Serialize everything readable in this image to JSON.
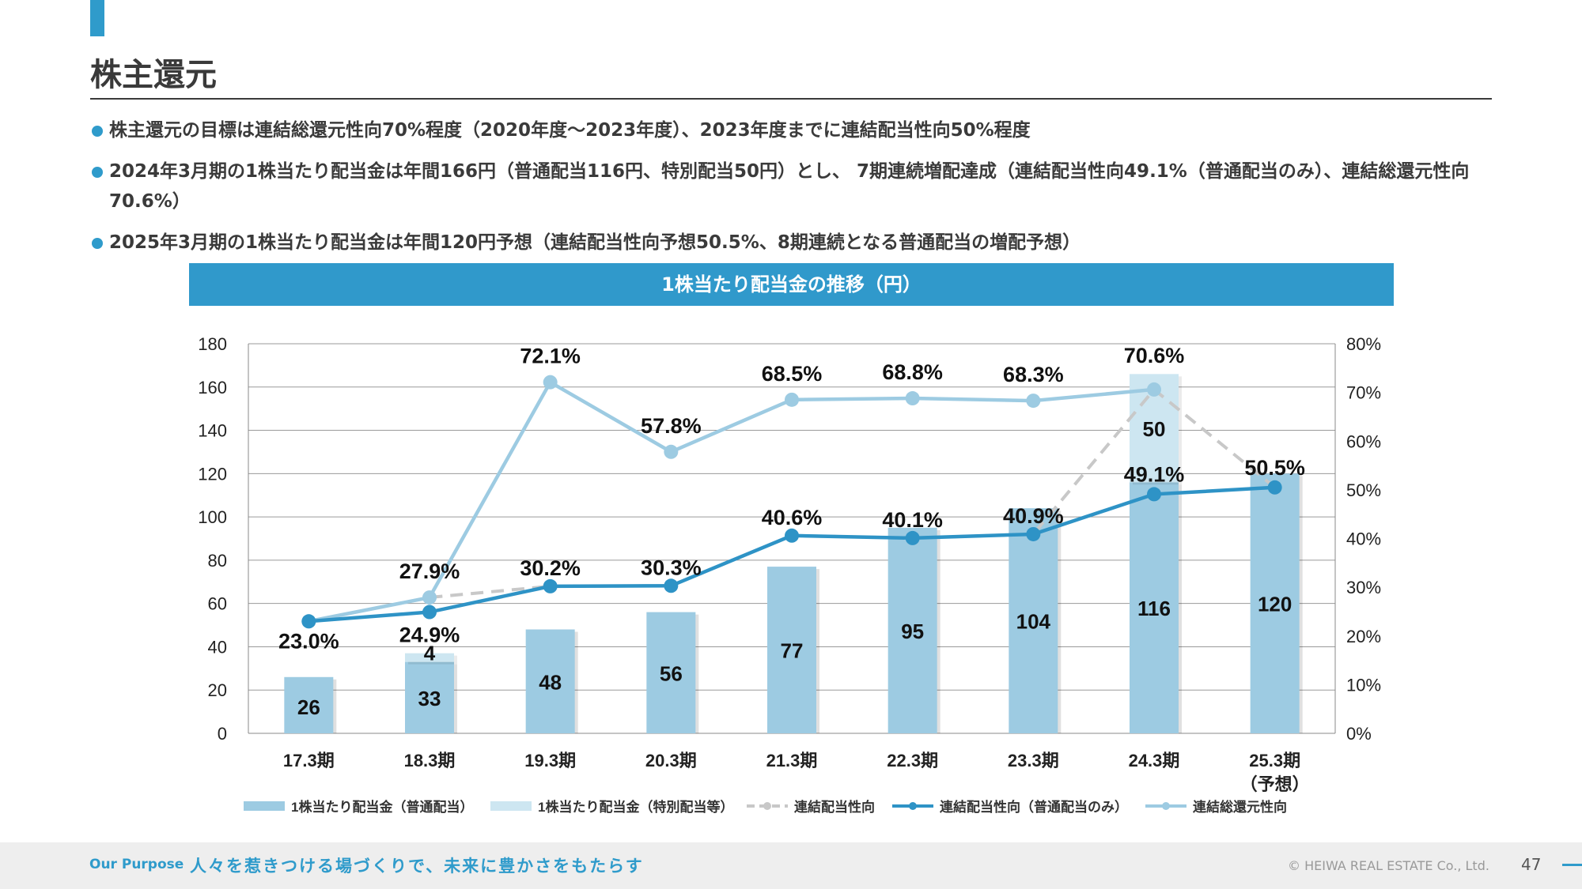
{
  "page": {
    "title": "株主還元",
    "bullets": [
      "株主還元の目標は連結総還元性向70%程度（2020年度〜2023年度）、2023年度までに連結配当性向50%程度",
      "2024年3月期の1株当たり配当金は年間166円（普通配当116円、特別配当50円）とし、 7期連続増配達成（連結配当性向49.1%（普通配当のみ）、連結総還元性向70.6%）",
      "2025年3月期の1株当たり配当金は年間120円予想（連結配当性向予想50.5%、8期連続となる普通配当の増配予想）"
    ],
    "chart_title": "1株当たり配当金の推移（円）"
  },
  "chart_data": {
    "type": "bar",
    "title": "1株当たり配当金の推移（円）",
    "categories": [
      "17.3期",
      "18.3期",
      "19.3期",
      "20.3期",
      "21.3期",
      "22.3期",
      "23.3期",
      "24.3期",
      "25.3期"
    ],
    "category_sublabels": [
      "",
      "",
      "",
      "",
      "",
      "",
      "",
      "",
      "（予想）"
    ],
    "ylim": [
      0,
      180
    ],
    "yticks": [
      0,
      20,
      40,
      60,
      80,
      100,
      120,
      140,
      160,
      180
    ],
    "y2lim": [
      0,
      80
    ],
    "y2ticks": [
      "0%",
      "10%",
      "20%",
      "30%",
      "40%",
      "50%",
      "60%",
      "70%",
      "80%"
    ],
    "series": [
      {
        "name": "1株当たり配当金（普通配当）",
        "kind": "bar",
        "color": "#9DCBE2",
        "values": [
          26,
          33,
          48,
          56,
          77,
          95,
          104,
          116,
          120
        ],
        "labels": [
          "26",
          "33",
          "48",
          "56",
          "77",
          "95",
          "104",
          "116",
          "120"
        ]
      },
      {
        "name": "1株当たり配当金（特別配当等）",
        "kind": "bar-stack",
        "color": "#CDE6F1",
        "values": [
          0,
          4,
          0,
          0,
          0,
          0,
          0,
          50,
          0
        ],
        "labels": [
          "",
          "4",
          "",
          "",
          "",
          "",
          "",
          "50",
          ""
        ]
      },
      {
        "name": "連結配当性向",
        "kind": "line-dashed",
        "color": "#C8C8C8",
        "values": [
          23.0,
          27.9,
          30.2,
          30.3,
          40.6,
          40.1,
          40.9,
          70.6,
          50.5
        ]
      },
      {
        "name": "連結配当性向（普通配当のみ）",
        "kind": "line",
        "color": "#2E93C6",
        "values": [
          23.0,
          24.9,
          30.2,
          30.3,
          40.6,
          40.1,
          40.9,
          49.1,
          50.5
        ],
        "labels": [
          "23.0%",
          "24.9%",
          "30.2%",
          "30.3%",
          "40.6%",
          "40.1%",
          "40.9%",
          "49.1%",
          "50.5%"
        ]
      },
      {
        "name": "連結総還元性向",
        "kind": "line",
        "color": "#9DCBE2",
        "values": [
          23.0,
          27.9,
          72.1,
          57.8,
          68.5,
          68.8,
          68.3,
          70.6,
          null
        ],
        "labels": [
          "",
          "27.9%",
          "72.1%",
          "57.8%",
          "68.5%",
          "68.8%",
          "68.3%",
          "70.6%",
          ""
        ]
      }
    ]
  },
  "footer": {
    "purpose_label": "Our Purpose",
    "mission": "人々を惹きつける場づくりで、未来に豊かさをもたらす",
    "copyright": "© HEIWA REAL ESTATE Co., Ltd.",
    "page_number": "47"
  }
}
